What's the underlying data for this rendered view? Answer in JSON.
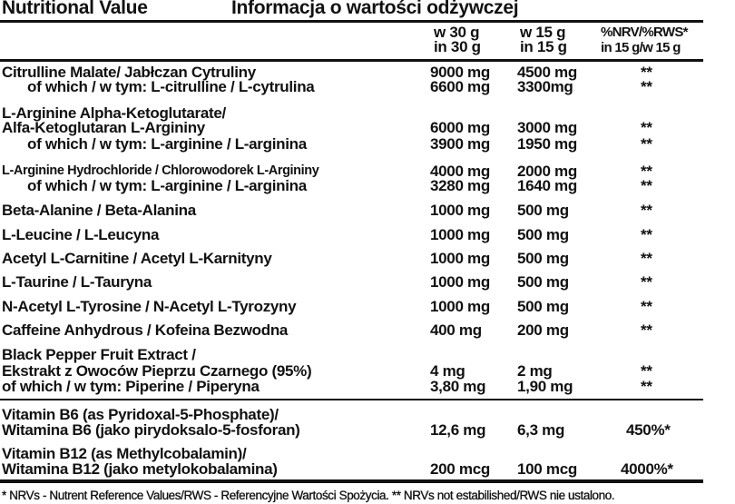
{
  "title_en": "Nutritional Value",
  "title_pl": "Informacja o wartości odżywczej",
  "headers": {
    "col1": [
      "w 30 g",
      "in 30 g"
    ],
    "col2": [
      "w 15 g",
      "in 15 g"
    ],
    "col3": [
      "%NRV/%RWS*",
      "in 15 g/w 15 g"
    ]
  },
  "lines": [
    {
      "name": "Citrulline Malate/ Jabłczan Cytruliny",
      "v1": "9000 mg",
      "v2": "4500 mg",
      "v3": "**"
    },
    {
      "name": "of which / w tym: L-citrulline / L-cytrulina",
      "v1": "6600 mg",
      "v2": "3300mg",
      "v3": "**"
    },
    {
      "name": "L-Arginine Alpha-Ketoglutarate/"
    },
    {
      "name": "Alfa-Ketoglutaran L-Argininy",
      "v1": "6000 mg",
      "v2": "3000 mg",
      "v3": "**"
    },
    {
      "name": "of which / w tym: L-arginine / L-arginina",
      "v1": "3900 mg",
      "v2": "1950 mg",
      "v3": "**"
    },
    {
      "name": "L-Arginine Hydrochloride / Chlorowodorek L-Argininy",
      "v1": "4000 mg",
      "v2": "2000 mg",
      "v3": "**"
    },
    {
      "name": "of which / w tym: L-arginine / L-arginina",
      "v1": "3280 mg",
      "v2": "1640 mg",
      "v3": "**"
    },
    {
      "name": "Beta-Alanine / Beta-Alanina",
      "v1": "1000 mg",
      "v2": "500 mg",
      "v3": "**"
    },
    {
      "name": "L-Leucine / L-Leucyna",
      "v1": "1000 mg",
      "v2": "500 mg",
      "v3": "**"
    },
    {
      "name": "Acetyl L-Carnitine / Acetyl L-Karnityny",
      "v1": "1000 mg",
      "v2": "500 mg",
      "v3": "**"
    },
    {
      "name": "L-Taurine / L-Tauryna",
      "v1": "1000 mg",
      "v2": "500 mg",
      "v3": "**"
    },
    {
      "name": "N-Acetyl L-Tyrosine / N-Acetyl L-Tyrozyny",
      "v1": "1000 mg",
      "v2": "500 mg",
      "v3": "**"
    },
    {
      "name": "Caffeine Anhydrous / Kofeina Bezwodna",
      "v1": "400 mg",
      "v2": "200 mg",
      "v3": "**"
    },
    {
      "name": "Black Pepper Fruit Extract /"
    },
    {
      "name": "Ekstrakt z Owoców Pieprzu Czarnego (95%)",
      "v1": "4 mg",
      "v2": "2 mg",
      "v3": "**"
    },
    {
      "name": "of which / w tym: Piperine / Piperyna",
      "v1": "3,80 mg",
      "v2": "1,90 mg",
      "v3": "**"
    },
    {
      "name": "Vitamin B6 (as Pyridoxal-5-Phosphate)/"
    },
    {
      "name": "Witamina B6 (jako pirydoksalo-5-fosforan)",
      "v1": "12,6 mg",
      "v2": "6,3 mg",
      "v3": "450%*"
    },
    {
      "name": "Vitamin B12 (as Methylcobalamin)/"
    },
    {
      "name": "Witamina B12 (jako metylokobalamina)",
      "v1": "200 mcg",
      "v2": "100 mcg",
      "v3": "4000%*"
    }
  ],
  "footnote": "*  NRVs - Nutrent Reference Values/RWS - Referencyjne Wartości Spożycia. **  NRVs not estabilished/RWS nie ustalono."
}
